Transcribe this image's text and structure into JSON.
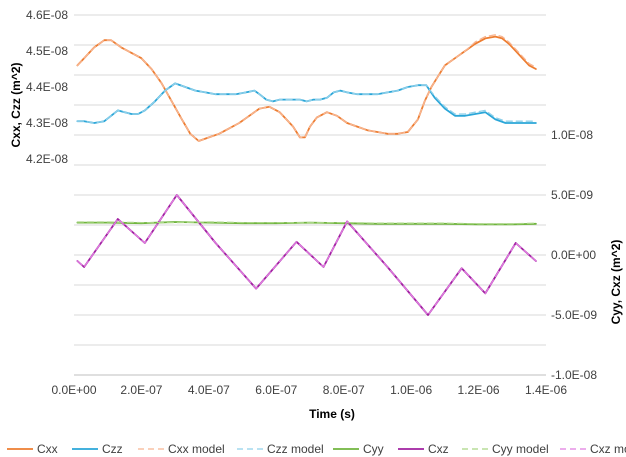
{
  "chart_data": {
    "type": "line",
    "xlabel": "Time (s)",
    "ylabel_left": "Cxx, Czz (m^2)",
    "ylabel_right": "Cyy, Cxz (m^2)",
    "xlim": [
      0,
      1.4e-06
    ],
    "ylim_left": [
      3.6e-08,
      4.6e-08
    ],
    "ylim_right": [
      -1e-08,
      2e-08
    ],
    "x_ticks": [
      "0.0E+00",
      "2.0E-07",
      "4.0E-07",
      "6.0E-07",
      "8.0E-07",
      "1.0E-06",
      "1.2E-06",
      "1.4E-06"
    ],
    "y_left_ticks": [
      "4.2E-08",
      "4.3E-08",
      "4.4E-08",
      "4.5E-08",
      "4.6E-08"
    ],
    "y_right_ticks": [
      "-1.0E-08",
      "-5.0E-09",
      "0.0E+00",
      "5.0E-09",
      "1.0E-08"
    ],
    "legend_position": "bottom",
    "series": [
      {
        "name": "Cxx",
        "axis": "left",
        "color": "#ED7D31",
        "dash": "solid",
        "x": [
          1e-08,
          3e-08,
          6e-08,
          9e-08,
          1.1e-07,
          1.4e-07,
          1.7e-07,
          2e-07,
          2.3e-07,
          2.6e-07,
          2.9e-07,
          3.2e-07,
          3.45e-07,
          3.7e-07,
          4e-07,
          4.3e-07,
          4.6e-07,
          4.9e-07,
          5.2e-07,
          5.5e-07,
          5.8e-07,
          6.1e-07,
          6.3e-07,
          6.5e-07,
          6.7e-07,
          6.85e-07,
          7e-07,
          7.2e-07,
          7.5e-07,
          7.8e-07,
          8.1e-07,
          8.4e-07,
          8.7e-07,
          9e-07,
          9.3e-07,
          9.6e-07,
          9.9e-07,
          1.02e-06,
          1.04e-06,
          1.06e-06,
          1.08e-06,
          1.1e-06,
          1.13e-06,
          1.16e-06,
          1.19e-06,
          1.22e-06,
          1.25e-06,
          1.27e-06,
          1.29e-06,
          1.31e-06,
          1.33e-06,
          1.35e-06,
          1.37e-06
        ],
        "y": [
          4.46e-08,
          4.48e-08,
          4.51e-08,
          4.53e-08,
          4.53e-08,
          4.51e-08,
          4.495e-08,
          4.48e-08,
          4.45e-08,
          4.41e-08,
          4.36e-08,
          4.31e-08,
          4.27e-08,
          4.25e-08,
          4.26e-08,
          4.27e-08,
          4.285e-08,
          4.3e-08,
          4.32e-08,
          4.34e-08,
          4.345e-08,
          4.33e-08,
          4.31e-08,
          4.29e-08,
          4.26e-08,
          4.26e-08,
          4.29e-08,
          4.315e-08,
          4.33e-08,
          4.32e-08,
          4.3e-08,
          4.29e-08,
          4.28e-08,
          4.275e-08,
          4.27e-08,
          4.27e-08,
          4.275e-08,
          4.31e-08,
          4.36e-08,
          4.4e-08,
          4.43e-08,
          4.46e-08,
          4.48e-08,
          4.5e-08,
          4.52e-08,
          4.535e-08,
          4.54e-08,
          4.535e-08,
          4.52e-08,
          4.5e-08,
          4.48e-08,
          4.46e-08,
          4.45e-08
        ]
      },
      {
        "name": "Czz",
        "axis": "left",
        "color": "#2AA6D8",
        "dash": "solid",
        "x": [
          1e-08,
          3e-08,
          6e-08,
          9e-08,
          1.1e-07,
          1.3e-07,
          1.5e-07,
          1.7e-07,
          1.9e-07,
          2.1e-07,
          2.4e-07,
          2.7e-07,
          3e-07,
          3.3e-07,
          3.6e-07,
          3.9e-07,
          4.2e-07,
          4.5e-07,
          4.8e-07,
          5.1e-07,
          5.35e-07,
          5.5e-07,
          5.7e-07,
          5.9e-07,
          6.1e-07,
          6.4e-07,
          6.7e-07,
          6.9e-07,
          7.1e-07,
          7.3e-07,
          7.5e-07,
          7.7e-07,
          7.9e-07,
          8.1e-07,
          8.4e-07,
          8.7e-07,
          9e-07,
          9.3e-07,
          9.6e-07,
          9.9e-07,
          1.02e-06,
          1.045e-06,
          1.07e-06,
          1.1e-06,
          1.13e-06,
          1.16e-06,
          1.19e-06,
          1.22e-06,
          1.25e-06,
          1.28e-06,
          1.31e-06,
          1.34e-06,
          1.37e-06
        ],
        "y": [
          4.305e-08,
          4.305e-08,
          4.3e-08,
          4.305e-08,
          4.32e-08,
          4.335e-08,
          4.33e-08,
          4.325e-08,
          4.325e-08,
          4.335e-08,
          4.36e-08,
          4.39e-08,
          4.41e-08,
          4.4e-08,
          4.39e-08,
          4.385e-08,
          4.38e-08,
          4.38e-08,
          4.38e-08,
          4.385e-08,
          4.39e-08,
          4.38e-08,
          4.365e-08,
          4.36e-08,
          4.365e-08,
          4.365e-08,
          4.365e-08,
          4.36e-08,
          4.365e-08,
          4.365e-08,
          4.37e-08,
          4.385e-08,
          4.39e-08,
          4.385e-08,
          4.38e-08,
          4.38e-08,
          4.38e-08,
          4.385e-08,
          4.39e-08,
          4.4e-08,
          4.405e-08,
          4.405e-08,
          4.37e-08,
          4.34e-08,
          4.32e-08,
          4.32e-08,
          4.325e-08,
          4.33e-08,
          4.31e-08,
          4.3e-08,
          4.3e-08,
          4.3e-08,
          4.3e-08
        ]
      },
      {
        "name": "Cxx model",
        "axis": "left",
        "color": "#F8B591",
        "dash": "dashed",
        "x": [
          1e-08,
          3e-08,
          6e-08,
          9e-08,
          1.1e-07,
          1.4e-07,
          1.7e-07,
          2e-07,
          2.3e-07,
          2.6e-07,
          2.9e-07,
          3.2e-07,
          3.45e-07,
          3.7e-07,
          4e-07,
          4.3e-07,
          4.6e-07,
          4.9e-07,
          5.2e-07,
          5.5e-07,
          5.8e-07,
          6.1e-07,
          6.3e-07,
          6.5e-07,
          6.7e-07,
          6.85e-07,
          7e-07,
          7.2e-07,
          7.5e-07,
          7.8e-07,
          8.1e-07,
          8.4e-07,
          8.7e-07,
          9e-07,
          9.3e-07,
          9.6e-07,
          9.9e-07,
          1.02e-06,
          1.04e-06,
          1.06e-06,
          1.08e-06,
          1.1e-06,
          1.13e-06,
          1.16e-06,
          1.19e-06,
          1.22e-06,
          1.25e-06,
          1.27e-06,
          1.29e-06,
          1.31e-06,
          1.33e-06,
          1.35e-06,
          1.37e-06
        ],
        "y": [
          4.46e-08,
          4.48e-08,
          4.51e-08,
          4.53e-08,
          4.53e-08,
          4.51e-08,
          4.495e-08,
          4.48e-08,
          4.45e-08,
          4.41e-08,
          4.36e-08,
          4.31e-08,
          4.27e-08,
          4.25e-08,
          4.26e-08,
          4.27e-08,
          4.285e-08,
          4.3e-08,
          4.32e-08,
          4.34e-08,
          4.345e-08,
          4.33e-08,
          4.31e-08,
          4.29e-08,
          4.26e-08,
          4.26e-08,
          4.29e-08,
          4.315e-08,
          4.33e-08,
          4.32e-08,
          4.3e-08,
          4.29e-08,
          4.28e-08,
          4.275e-08,
          4.27e-08,
          4.27e-08,
          4.275e-08,
          4.31e-08,
          4.36e-08,
          4.4e-08,
          4.43e-08,
          4.46e-08,
          4.48e-08,
          4.5e-08,
          4.525e-08,
          4.54e-08,
          4.545e-08,
          4.54e-08,
          4.525e-08,
          4.505e-08,
          4.485e-08,
          4.465e-08,
          4.455e-08
        ]
      },
      {
        "name": "Czz model",
        "axis": "left",
        "color": "#8FD0EA",
        "dash": "dashed",
        "x": [
          1e-08,
          3e-08,
          6e-08,
          9e-08,
          1.1e-07,
          1.3e-07,
          1.5e-07,
          1.7e-07,
          1.9e-07,
          2.1e-07,
          2.4e-07,
          2.7e-07,
          3e-07,
          3.3e-07,
          3.6e-07,
          3.9e-07,
          4.2e-07,
          4.5e-07,
          4.8e-07,
          5.1e-07,
          5.35e-07,
          5.5e-07,
          5.7e-07,
          5.9e-07,
          6.1e-07,
          6.4e-07,
          6.7e-07,
          6.9e-07,
          7.1e-07,
          7.3e-07,
          7.5e-07,
          7.7e-07,
          7.9e-07,
          8.1e-07,
          8.4e-07,
          8.7e-07,
          9e-07,
          9.3e-07,
          9.6e-07,
          9.9e-07,
          1.02e-06,
          1.045e-06,
          1.07e-06,
          1.1e-06,
          1.13e-06,
          1.16e-06,
          1.19e-06,
          1.22e-06,
          1.25e-06,
          1.28e-06,
          1.31e-06,
          1.34e-06,
          1.37e-06
        ],
        "y": [
          4.305e-08,
          4.305e-08,
          4.3e-08,
          4.305e-08,
          4.32e-08,
          4.335e-08,
          4.33e-08,
          4.325e-08,
          4.325e-08,
          4.335e-08,
          4.36e-08,
          4.39e-08,
          4.41e-08,
          4.4e-08,
          4.39e-08,
          4.385e-08,
          4.38e-08,
          4.38e-08,
          4.38e-08,
          4.385e-08,
          4.39e-08,
          4.38e-08,
          4.365e-08,
          4.36e-08,
          4.365e-08,
          4.365e-08,
          4.365e-08,
          4.36e-08,
          4.365e-08,
          4.365e-08,
          4.37e-08,
          4.385e-08,
          4.39e-08,
          4.385e-08,
          4.38e-08,
          4.38e-08,
          4.38e-08,
          4.385e-08,
          4.39e-08,
          4.4e-08,
          4.405e-08,
          4.405e-08,
          4.375e-08,
          4.345e-08,
          4.325e-08,
          4.325e-08,
          4.33e-08,
          4.335e-08,
          4.315e-08,
          4.305e-08,
          4.305e-08,
          4.305e-08,
          4.305e-08
        ]
      },
      {
        "name": "Cyy",
        "axis": "right",
        "color": "#70B53E",
        "dash": "solid",
        "x": [
          1e-08,
          1e-07,
          2e-07,
          3e-07,
          4e-07,
          5e-07,
          6e-07,
          7e-07,
          8e-07,
          9e-07,
          1e-06,
          1.1e-06,
          1.2e-06,
          1.3e-06,
          1.37e-06
        ],
        "y": [
          2.7e-09,
          2.7e-09,
          2.65e-09,
          2.75e-09,
          2.7e-09,
          2.65e-09,
          2.65e-09,
          2.7e-09,
          2.65e-09,
          2.6e-09,
          2.6e-09,
          2.6e-09,
          2.55e-09,
          2.55e-09,
          2.6e-09
        ]
      },
      {
        "name": "Cxz",
        "axis": "right",
        "color": "#A020A0",
        "dash": "solid",
        "x": [
          1e-08,
          3e-08,
          1.3e-07,
          2.1e-07,
          3.05e-07,
          4.2e-07,
          5.4e-07,
          6.6e-07,
          7.4e-07,
          8.1e-07,
          9.3e-07,
          1.05e-06,
          1.15e-06,
          1.22e-06,
          1.31e-06,
          1.37e-06
        ],
        "y": [
          -5e-10,
          -1e-09,
          3e-09,
          1e-09,
          5e-09,
          1e-09,
          -2.8e-09,
          1.1e-09,
          -1e-09,
          2.8e-09,
          -1e-09,
          -5e-09,
          -1.1e-09,
          -3.2e-09,
          1e-09,
          -5e-10
        ]
      },
      {
        "name": "Cyy model",
        "axis": "right",
        "color": "#A9D585",
        "dash": "dashed",
        "x": [
          1e-08,
          1e-07,
          2e-07,
          3e-07,
          4e-07,
          5e-07,
          6e-07,
          7e-07,
          8e-07,
          9e-07,
          1e-06,
          1.1e-06,
          1.2e-06,
          1.3e-06,
          1.37e-06
        ],
        "y": [
          2.75e-09,
          2.75e-09,
          2.7e-09,
          2.7e-09,
          2.75e-09,
          2.7e-09,
          2.7e-09,
          2.7e-09,
          2.7e-09,
          2.65e-09,
          2.65e-09,
          2.65e-09,
          2.6e-09,
          2.6e-09,
          2.65e-09
        ]
      },
      {
        "name": "Cxz model",
        "axis": "right",
        "color": "#E07CE0",
        "dash": "dashed",
        "x": [
          1e-08,
          3e-08,
          1.3e-07,
          2.1e-07,
          3.05e-07,
          4.2e-07,
          5.4e-07,
          6.6e-07,
          7.4e-07,
          8.1e-07,
          9.3e-07,
          1.05e-06,
          1.15e-06,
          1.22e-06,
          1.31e-06,
          1.37e-06
        ],
        "y": [
          -5e-10,
          -1e-09,
          3e-09,
          1e-09,
          5e-09,
          1e-09,
          -2.8e-09,
          1.1e-09,
          -1e-09,
          2.8e-09,
          -1e-09,
          -5e-09,
          -1.1e-09,
          -3.2e-09,
          1e-09,
          -5e-10
        ]
      }
    ]
  }
}
